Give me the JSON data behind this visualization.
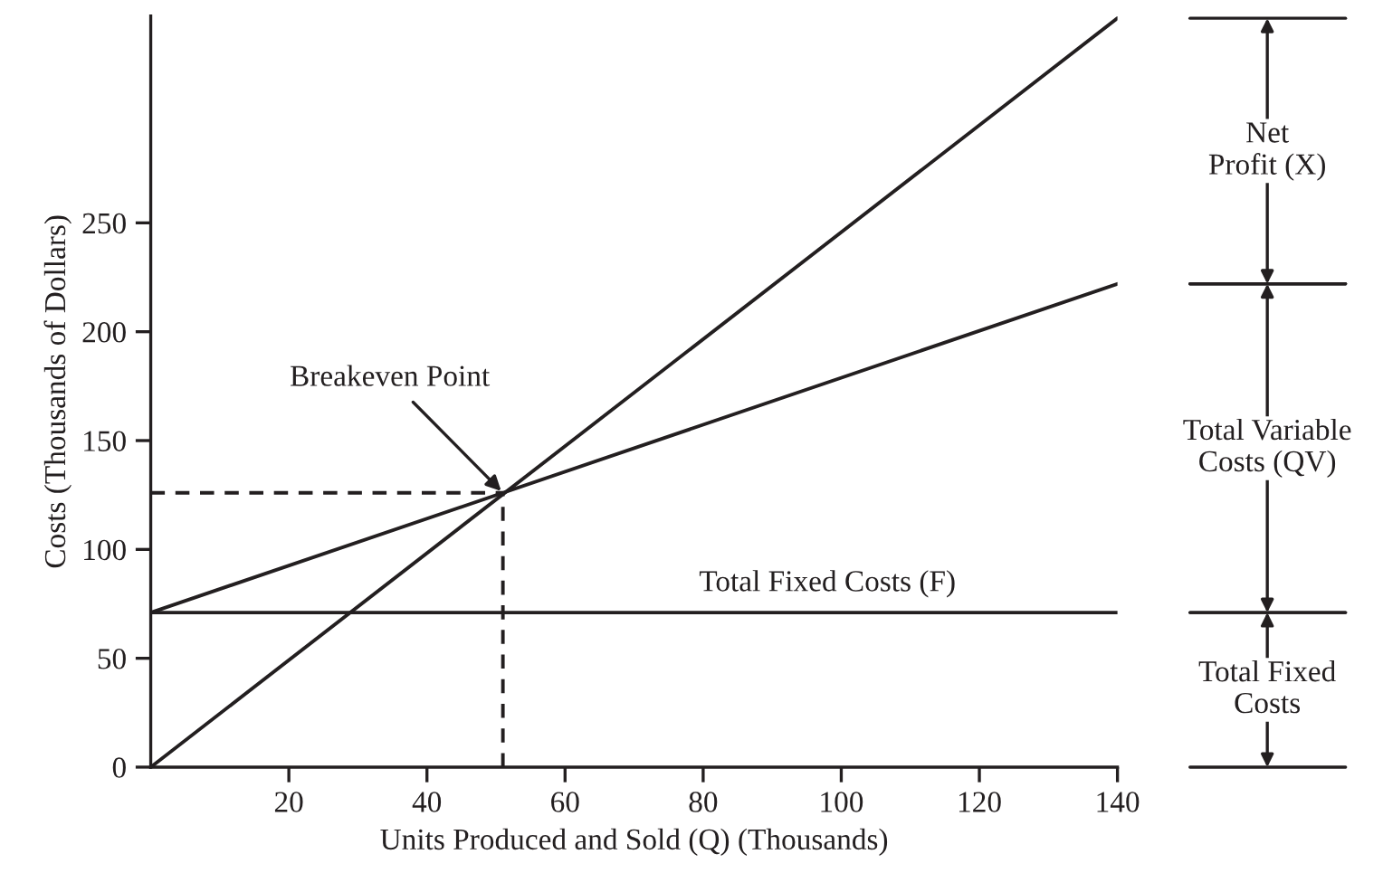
{
  "chart_data": {
    "type": "line",
    "xlabel": "Units Produced and Sold (Q) (Thousands)",
    "ylabel": "Costs (Thousands of Dollars)",
    "xlim": [
      0,
      140
    ],
    "ylim": [
      0,
      345
    ],
    "xticks": [
      20,
      40,
      60,
      80,
      100,
      120,
      140
    ],
    "yticks": [
      0,
      50,
      100,
      150,
      200,
      250
    ],
    "grid": false,
    "legend": false,
    "marker": "none",
    "series": [
      {
        "color": "#231f20",
        "x": [
          0,
          140
        ],
        "values": [
          0,
          344
        ]
      },
      {
        "color": "#231f20",
        "x": [
          0,
          140
        ],
        "values": [
          71,
          222
        ]
      },
      {
        "name": "Total Fixed Costs (F)",
        "color": "#231f20",
        "x": [
          0,
          140
        ],
        "values": [
          71,
          71
        ]
      },
      {
        "color": "#231f20",
        "x": [
          0,
          51
        ],
        "values": [
          126,
          126
        ],
        "line_style": "dashed"
      },
      {
        "color": "#231f20",
        "x": [
          51,
          51
        ],
        "values": [
          0,
          126
        ],
        "line_style": "dashed"
      }
    ],
    "annotations": [
      {
        "text": "Breakeven Point",
        "x": 51,
        "y": 126
      },
      "Net\nProfit (X)",
      "Total Variable\nCosts (QV)",
      "Total Fixed\nCosts"
    ]
  }
}
